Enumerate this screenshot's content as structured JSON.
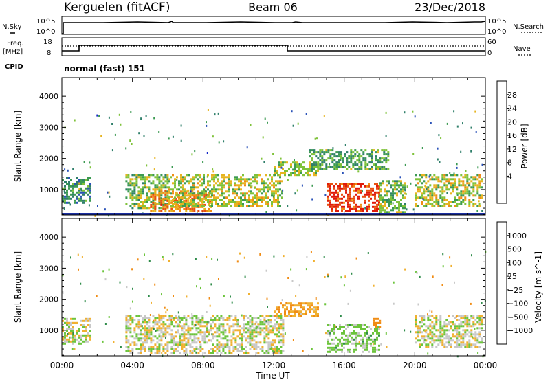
{
  "header": {
    "station": "Kerguelen (fitACF)",
    "beam": "Beam 06",
    "date": "23/Dec/2018"
  },
  "noise_panel": {
    "left_label": "N.Sky",
    "right_label": "N.Search",
    "left_ticks": [
      "10^5",
      "10^0"
    ],
    "right_ticks": [
      "10^5",
      "10^0"
    ]
  },
  "freq_panel": {
    "left_label_1": "Freq.",
    "left_label_2": "[MHz]",
    "right_label": "Nave",
    "left_ticks": [
      "18",
      "8"
    ],
    "right_ticks": [
      "60",
      "0"
    ]
  },
  "cpid": {
    "label": "CPID",
    "program": "normal (fast) 151"
  },
  "x_axis": {
    "label": "Time UT",
    "ticks": [
      "00:00",
      "04:00",
      "08:00",
      "12:00",
      "16:00",
      "20:00",
      "00:00"
    ]
  },
  "chart_data": [
    {
      "type": "heatmap",
      "title": "Power",
      "ylabel": "Slant Range [km]",
      "y_ticks": [
        "1000",
        "2000",
        "3000",
        "4000"
      ],
      "ylim": [
        180,
        4600
      ],
      "colorbar": {
        "label": "Power [dB]",
        "ticks": [
          "4",
          "8",
          "12",
          "16",
          "20",
          "24",
          "28"
        ],
        "range": [
          0,
          30
        ],
        "colors": [
          "#1428c8",
          "#2a52b8",
          "#2f7f6a",
          "#3c9a52",
          "#7fc23a",
          "#e6b420",
          "#f08c14",
          "#e85010",
          "#e01a0a"
        ]
      },
      "echo_regions": [
        {
          "t_start": 0.0,
          "t_end": 1.6,
          "r_min": 600,
          "r_max": 1400,
          "level": 10
        },
        {
          "t_start": 3.6,
          "t_end": 6.0,
          "r_min": 400,
          "r_max": 1500,
          "level": 14
        },
        {
          "t_start": 5.0,
          "t_end": 8.5,
          "r_min": 300,
          "r_max": 1000,
          "level": 22
        },
        {
          "t_start": 6.0,
          "t_end": 12.5,
          "r_min": 500,
          "r_max": 1500,
          "level": 16
        },
        {
          "t_start": 12.0,
          "t_end": 14.5,
          "r_min": 1500,
          "r_max": 1900,
          "level": 15
        },
        {
          "t_start": 14.0,
          "t_end": 18.5,
          "r_min": 1700,
          "r_max": 2300,
          "level": 12
        },
        {
          "t_start": 15.0,
          "t_end": 18.0,
          "r_min": 300,
          "r_max": 1200,
          "level": 27
        },
        {
          "t_start": 18.0,
          "t_end": 19.5,
          "r_min": 300,
          "r_max": 1300,
          "level": 14
        },
        {
          "t_start": 20.0,
          "t_end": 23.8,
          "r_min": 500,
          "r_max": 1500,
          "level": 16
        }
      ]
    },
    {
      "type": "heatmap",
      "title": "Velocity",
      "ylabel": "Slant Range [km]",
      "y_ticks": [
        "1000",
        "2000",
        "3000",
        "4000"
      ],
      "ylim": [
        180,
        4600
      ],
      "colorbar": {
        "label": "Velocity [m s^-1]",
        "ticks": [
          "1000",
          "500",
          "100",
          "25",
          "−25",
          "−100",
          "−500",
          "−1000"
        ],
        "range": [
          -1000,
          1000
        ],
        "colors": [
          "#e01a0a",
          "#e85010",
          "#f08c14",
          "#f0b030",
          "#c8c8c8",
          "#6cc43c",
          "#2f8c4a",
          "#2a5cb0",
          "#1a2ea0"
        ]
      },
      "echo_regions": [
        {
          "t_start": 0.0,
          "t_end": 1.6,
          "r_min": 600,
          "r_max": 1400,
          "velocity": 0
        },
        {
          "t_start": 3.6,
          "t_end": 12.5,
          "r_min": 300,
          "r_max": 1500,
          "velocity": 0
        },
        {
          "t_start": 12.0,
          "t_end": 14.5,
          "r_min": 1500,
          "r_max": 1900,
          "velocity": -80
        },
        {
          "t_start": 15.0,
          "t_end": 18.0,
          "r_min": 300,
          "r_max": 1200,
          "velocity": 50
        },
        {
          "t_start": 17.5,
          "t_end": 18.2,
          "r_min": 1100,
          "r_max": 1400,
          "velocity": -300
        },
        {
          "t_start": 20.0,
          "t_end": 23.8,
          "r_min": 500,
          "r_max": 1500,
          "velocity": 0
        }
      ]
    }
  ]
}
